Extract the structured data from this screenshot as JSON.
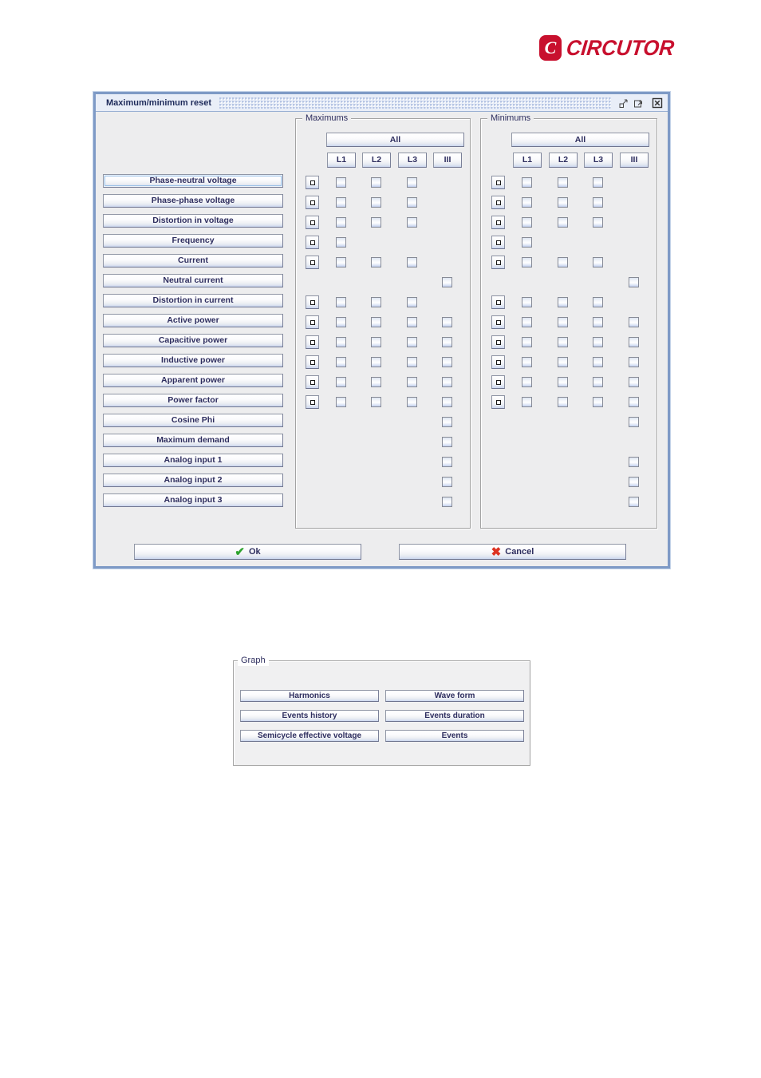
{
  "logo": {
    "brand": "CIRCUTOR",
    "icon": "circutor-c-icon",
    "brand_color": "#C8102E"
  },
  "colors": {
    "dialog_border": "#7E9AC6",
    "titlebar_bg": "#E9EEF8",
    "content_bg": "#EDEDEE",
    "ok_check_green": "#2EA32E",
    "cancel_x_red": "#DD3322"
  },
  "dialog": {
    "title": "Maximum/minimum reset",
    "window_icons": [
      "iconify-icon",
      "maximize-icon",
      "close-icon"
    ],
    "ok_label": "Ok",
    "cancel_label": "Cancel",
    "focused_param_index": 0,
    "panels": [
      {
        "key": "max",
        "title": "Maximums",
        "all_label": "All",
        "columns": [
          "L1",
          "L2",
          "L3",
          "III"
        ]
      },
      {
        "key": "min",
        "title": "Minimums",
        "all_label": "All",
        "columns": [
          "L1",
          "L2",
          "L3",
          "III"
        ]
      }
    ],
    "rows": [
      {
        "label": "Phase-neutral voltage",
        "max": {
          "reset_button": true,
          "checks": [
            "L1",
            "L2",
            "L3"
          ]
        },
        "min": {
          "reset_button": true,
          "checks": [
            "L1",
            "L2",
            "L3"
          ]
        }
      },
      {
        "label": "Phase-phase voltage",
        "max": {
          "reset_button": true,
          "checks": [
            "L1",
            "L2",
            "L3"
          ]
        },
        "min": {
          "reset_button": true,
          "checks": [
            "L1",
            "L2",
            "L3"
          ]
        }
      },
      {
        "label": "Distortion in voltage",
        "max": {
          "reset_button": true,
          "checks": [
            "L1",
            "L2",
            "L3"
          ]
        },
        "min": {
          "reset_button": true,
          "checks": [
            "L1",
            "L2",
            "L3"
          ]
        }
      },
      {
        "label": "Frequency",
        "max": {
          "reset_button": true,
          "checks": [
            "L1"
          ]
        },
        "min": {
          "reset_button": true,
          "checks": [
            "L1"
          ]
        }
      },
      {
        "label": "Current",
        "max": {
          "reset_button": true,
          "checks": [
            "L1",
            "L2",
            "L3"
          ]
        },
        "min": {
          "reset_button": true,
          "checks": [
            "L1",
            "L2",
            "L3"
          ]
        }
      },
      {
        "label": "Neutral current",
        "max": {
          "reset_button": false,
          "checks": [
            "III"
          ]
        },
        "min": {
          "reset_button": false,
          "checks": [
            "III"
          ]
        }
      },
      {
        "label": "Distortion in current",
        "max": {
          "reset_button": true,
          "checks": [
            "L1",
            "L2",
            "L3"
          ]
        },
        "min": {
          "reset_button": true,
          "checks": [
            "L1",
            "L2",
            "L3"
          ]
        }
      },
      {
        "label": "Active power",
        "max": {
          "reset_button": true,
          "checks": [
            "L1",
            "L2",
            "L3",
            "III"
          ]
        },
        "min": {
          "reset_button": true,
          "checks": [
            "L1",
            "L2",
            "L3",
            "III"
          ]
        }
      },
      {
        "label": "Capacitive power",
        "max": {
          "reset_button": true,
          "checks": [
            "L1",
            "L2",
            "L3",
            "III"
          ]
        },
        "min": {
          "reset_button": true,
          "checks": [
            "L1",
            "L2",
            "L3",
            "III"
          ]
        }
      },
      {
        "label": "Inductive power",
        "max": {
          "reset_button": true,
          "checks": [
            "L1",
            "L2",
            "L3",
            "III"
          ]
        },
        "min": {
          "reset_button": true,
          "checks": [
            "L1",
            "L2",
            "L3",
            "III"
          ]
        }
      },
      {
        "label": "Apparent power",
        "max": {
          "reset_button": true,
          "checks": [
            "L1",
            "L2",
            "L3",
            "III"
          ]
        },
        "min": {
          "reset_button": true,
          "checks": [
            "L1",
            "L2",
            "L3",
            "III"
          ]
        }
      },
      {
        "label": "Power factor",
        "max": {
          "reset_button": true,
          "checks": [
            "L1",
            "L2",
            "L3",
            "III"
          ]
        },
        "min": {
          "reset_button": true,
          "checks": [
            "L1",
            "L2",
            "L3",
            "III"
          ]
        }
      },
      {
        "label": "Cosine Phi",
        "max": {
          "reset_button": false,
          "checks": [
            "III"
          ]
        },
        "min": {
          "reset_button": false,
          "checks": [
            "III"
          ]
        }
      },
      {
        "label": "Maximum demand",
        "max": {
          "reset_button": false,
          "checks": [
            "III"
          ]
        },
        "min": {
          "reset_button": false,
          "checks": []
        }
      },
      {
        "label": "Analog input 1",
        "max": {
          "reset_button": false,
          "checks": [
            "III"
          ]
        },
        "min": {
          "reset_button": false,
          "checks": [
            "III"
          ]
        }
      },
      {
        "label": "Analog input 2",
        "max": {
          "reset_button": false,
          "checks": [
            "III"
          ]
        },
        "min": {
          "reset_button": false,
          "checks": [
            "III"
          ]
        }
      },
      {
        "label": "Analog input 3",
        "max": {
          "reset_button": false,
          "checks": [
            "III"
          ]
        },
        "min": {
          "reset_button": false,
          "checks": [
            "III"
          ]
        }
      }
    ]
  },
  "graph_panel": {
    "title": "Graph",
    "buttons": [
      "Harmonics",
      "Wave form",
      "Events history",
      "Events duration",
      "Semicycle effective voltage",
      "Events"
    ]
  }
}
